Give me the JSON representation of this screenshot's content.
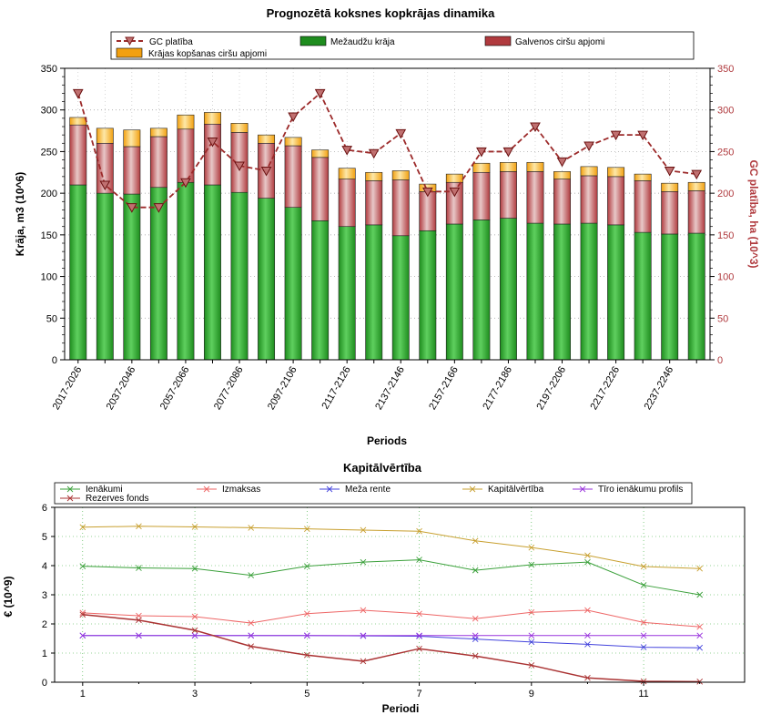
{
  "chart_data": [
    {
      "type": "bar",
      "stacked": true,
      "title": "Prognozētā koksnes kopkrājas dinamika",
      "xlabel": "Periods",
      "ylabel": "Krāja, m3 (10^6)",
      "y2label": "GC platība, ha (10^3)",
      "ylim": [
        0,
        350
      ],
      "y2lim": [
        0,
        350
      ],
      "yticks": [
        0,
        50,
        100,
        150,
        200,
        250,
        300,
        350
      ],
      "grid": true,
      "legend_position": "top",
      "x_tick_labels": [
        "2017-2026",
        "2037-2046",
        "2057-2066",
        "2077-2086",
        "2097-2106",
        "2117-2126",
        "2137-2146",
        "2157-2166",
        "2177-2186",
        "2197-2206",
        "2217-2226",
        "2237-2246"
      ],
      "legend": {
        "gc": "GC platība",
        "mezaudzu": "Mežaudžu krāja",
        "galvenos": "Galvenos ciršu apjomi",
        "kopsanas": "Krājas kopšanas ciršu apjomi"
      },
      "colors": {
        "mezaudzu": "#1e8c1e",
        "galvenos": "#b03a3e",
        "kopsanas": "#f2a010",
        "gc_line": "#9c2a2a"
      },
      "series": [
        {
          "name": "Mežaudžu krāja",
          "values": [
            210,
            200,
            199,
            207,
            213,
            210,
            201,
            194,
            183,
            167,
            160,
            162,
            149,
            155,
            163,
            168,
            170,
            164,
            163,
            164,
            162,
            153,
            151,
            152
          ]
        },
        {
          "name": "Galvenos ciršu apjomi",
          "values": [
            72,
            60,
            57,
            61,
            64,
            73,
            72,
            66,
            74,
            76,
            57,
            53,
            67,
            47,
            50,
            57,
            56,
            62,
            54,
            57,
            58,
            62,
            51,
            51
          ]
        },
        {
          "name": "Krājas kopšanas ciršu apjomi",
          "values": [
            9,
            18,
            20,
            10,
            17,
            14,
            11,
            10,
            10,
            9,
            13,
            10,
            11,
            9,
            10,
            11,
            11,
            11,
            9,
            11,
            11,
            8,
            10,
            10
          ]
        },
        {
          "name": "GC platība",
          "values": [
            320,
            210,
            183,
            183,
            213,
            262,
            233,
            227,
            292,
            320,
            252,
            248,
            272,
            202,
            202,
            250,
            250,
            280,
            238,
            257,
            270,
            270,
            227,
            223
          ]
        }
      ]
    },
    {
      "type": "line",
      "title": "Kapitālvērtība",
      "xlabel": "Periodi",
      "ylabel": "€ (10^9)",
      "x": [
        1,
        2,
        3,
        4,
        5,
        6,
        7,
        8,
        9,
        10,
        11,
        12
      ],
      "xticks": [
        1,
        3,
        5,
        7,
        9,
        11
      ],
      "ylim": [
        0,
        6
      ],
      "yticks": [
        0,
        1,
        2,
        3,
        4,
        5,
        6
      ],
      "grid": true,
      "legend_position": "top",
      "series": [
        {
          "name": "Ienākumi",
          "color": "#3aa03a",
          "values": [
            3.98,
            3.92,
            3.9,
            3.67,
            3.98,
            4.12,
            4.2,
            3.84,
            4.03,
            4.12,
            3.33,
            3.0
          ]
        },
        {
          "name": "Izmaksas",
          "color": "#ee6666",
          "values": [
            2.38,
            2.28,
            2.25,
            2.03,
            2.35,
            2.47,
            2.35,
            2.18,
            2.4,
            2.47,
            2.05,
            1.9
          ]
        },
        {
          "name": "Meža rente",
          "color": "#4444dd",
          "values": [
            1.6,
            1.6,
            1.6,
            1.6,
            1.6,
            1.59,
            1.58,
            1.48,
            1.38,
            1.3,
            1.2,
            1.18
          ]
        },
        {
          "name": "Kapitālvērtība",
          "color": "#c8a030",
          "values": [
            5.32,
            5.35,
            5.33,
            5.3,
            5.26,
            5.22,
            5.18,
            4.85,
            4.62,
            4.35,
            3.97,
            3.9
          ]
        },
        {
          "name": "Tīro ienākumu profils",
          "color": "#9933dd",
          "values": [
            1.6,
            1.6,
            1.6,
            1.6,
            1.6,
            1.6,
            1.6,
            1.6,
            1.6,
            1.6,
            1.6,
            1.6
          ]
        },
        {
          "name": "Rezerves fonds",
          "color": "#aa3333",
          "values": [
            2.32,
            2.13,
            1.78,
            1.23,
            0.93,
            0.72,
            1.15,
            0.9,
            0.58,
            0.15,
            0.03,
            0.02
          ]
        }
      ]
    }
  ]
}
